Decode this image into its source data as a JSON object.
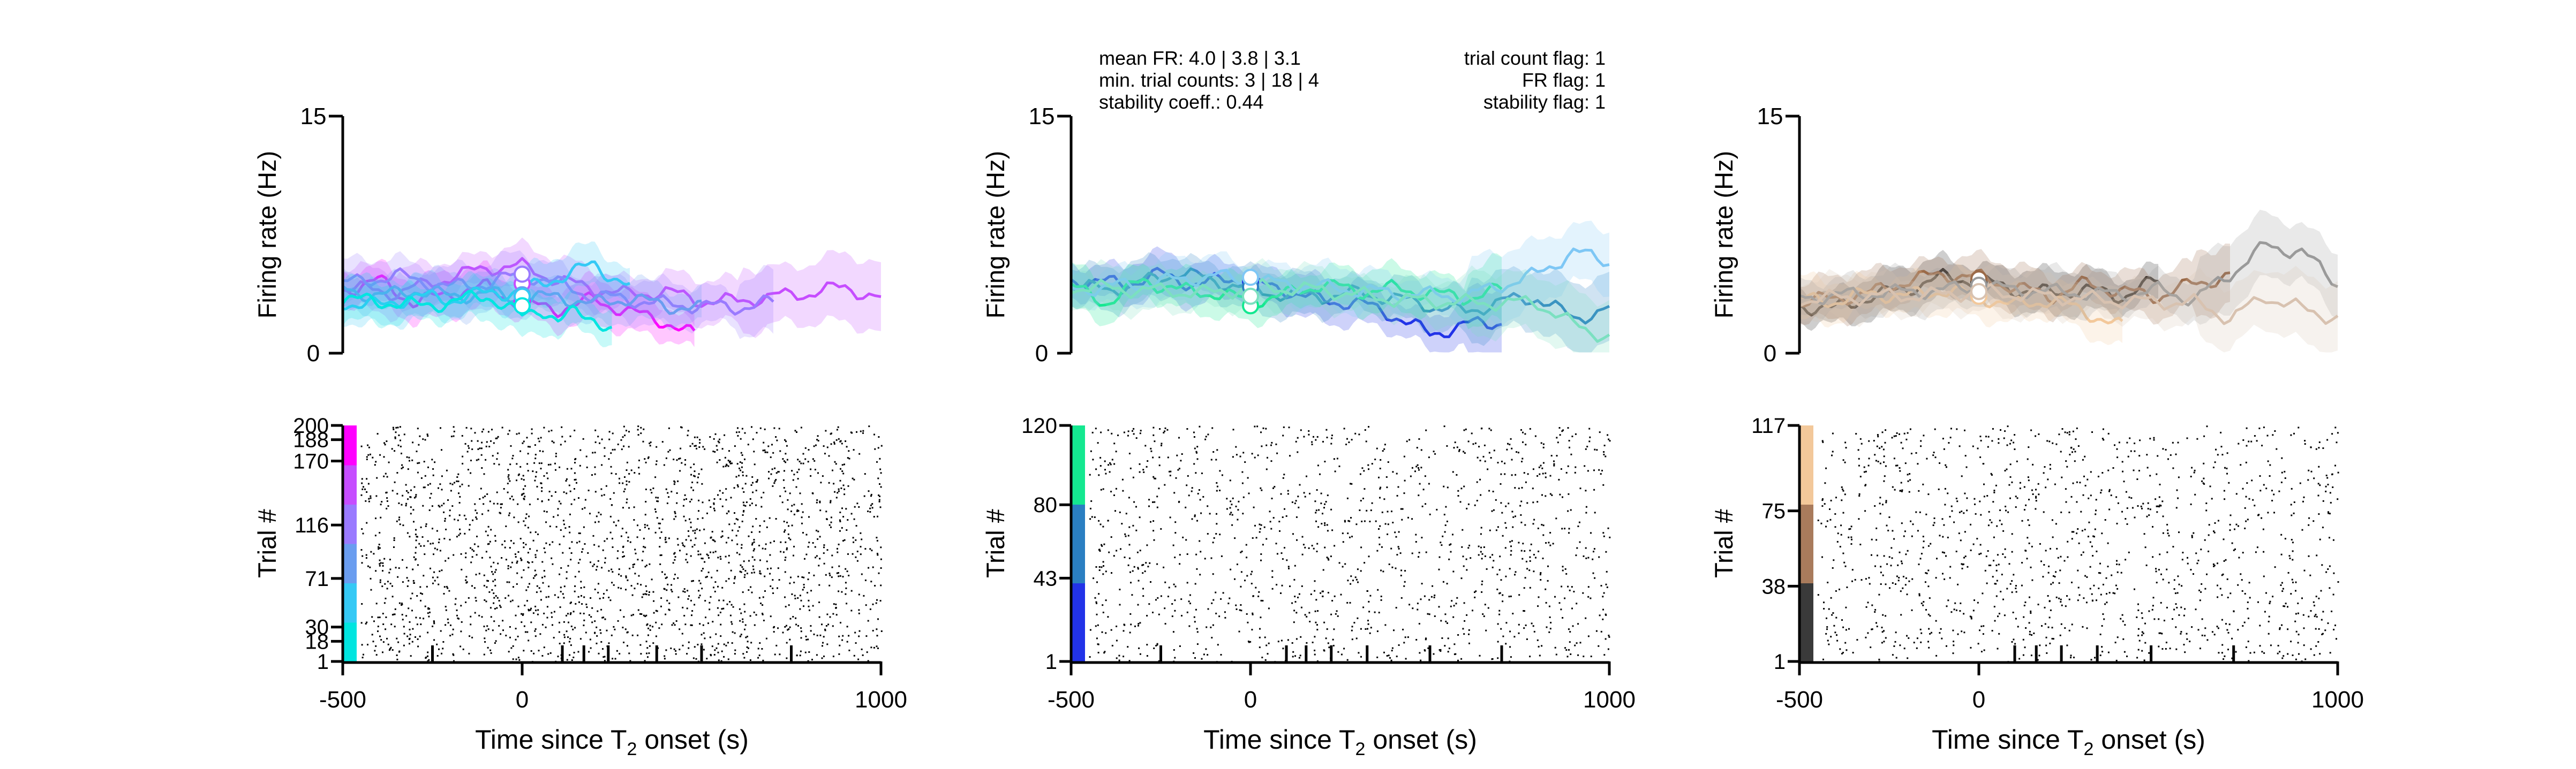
{
  "figure": {
    "stats": {
      "left": [
        "mean FR: 4.0 | 3.8 | 3.1",
        "min. trial counts: 3 | 18 | 4",
        "stability coeff.: 0.44"
      ],
      "right": [
        "trial count flag: 1",
        "FR flag: 1",
        "stability flag: 1"
      ]
    }
  },
  "chart_data": [
    {
      "type": "line",
      "title": "",
      "ylabel": "Firing rate (Hz)",
      "xlim": [
        -500,
        1000
      ],
      "ylim": [
        0,
        15
      ],
      "yticks": [
        0,
        15
      ],
      "grid": false,
      "series": [
        {
          "color": "#ff00ff",
          "x": [
            -500,
            -400,
            -300,
            -200,
            -100,
            0,
            100,
            200,
            300,
            400,
            480
          ],
          "y": [
            4.0,
            4.6,
            3.2,
            3.8,
            4.2,
            3.1,
            2.8,
            3.4,
            2.6,
            2.0,
            1.1
          ],
          "marker_y": 3.3
        },
        {
          "color": "#c64dff",
          "x": [
            -500,
            -350,
            -200,
            -100,
            0,
            100,
            200,
            300,
            400,
            500,
            600,
            700,
            800,
            900,
            1000
          ],
          "y": [
            4.2,
            3.8,
            4.8,
            5.4,
            5.5,
            4.6,
            4.1,
            3.7,
            3.9,
            3.3,
            3.3,
            3.6,
            3.8,
            4.2,
            3.4
          ],
          "marker_y": 4.4
        },
        {
          "color": "#9a7aff",
          "x": [
            -500,
            -350,
            -200,
            -100,
            0,
            100,
            200,
            300,
            400,
            500,
            600,
            700
          ],
          "y": [
            4.4,
            4.9,
            4.2,
            4.4,
            5.0,
            4.4,
            3.6,
            3.4,
            3.1,
            3.0,
            2.9,
            3.2
          ],
          "marker_y": 5.0
        },
        {
          "color": "#6a9df0",
          "x": [
            -500,
            -400,
            -300,
            -200,
            -100,
            0,
            100,
            200,
            300,
            400,
            500
          ],
          "y": [
            4.1,
            3.6,
            4.0,
            3.6,
            3.8,
            3.4,
            3.6,
            3.1,
            3.5,
            3.0,
            2.8
          ],
          "marker_y": 3.7
        },
        {
          "color": "#35c9f5",
          "x": [
            -500,
            -400,
            -300,
            -200,
            -100,
            0,
            100,
            200,
            300
          ],
          "y": [
            3.2,
            3.0,
            3.6,
            3.4,
            3.8,
            3.9,
            4.8,
            5.6,
            4.2
          ],
          "marker_y": 3.6
        },
        {
          "color": "#00e5e0",
          "x": [
            -500,
            -400,
            -300,
            -200,
            -100,
            0,
            50,
            100,
            150,
            200,
            250
          ],
          "y": [
            3.4,
            3.3,
            3.0,
            3.2,
            3.7,
            2.3,
            2.9,
            2.0,
            2.6,
            2.3,
            1.3
          ],
          "marker_y": 3.0
        }
      ],
      "raster": {
        "ylabel": "Trial #",
        "yticks": [
          1,
          18,
          30,
          71,
          116,
          170,
          188,
          200
        ],
        "n_trials": 200,
        "colorbar": [
          "#00e5e0",
          "#35c9f5",
          "#6a9df0",
          "#9a7aff",
          "#c64dff",
          "#ff00ff"
        ]
      },
      "xlabel_main": "Time since T",
      "xlabel_sub": "2",
      "xlabel_tail": " onset (s)",
      "xtick_labels": [
        "-500",
        "0",
        "1000"
      ],
      "xtick_values": [
        -500,
        0,
        1000
      ],
      "xminor_ticks": [
        -250,
        112,
        172,
        240,
        375,
        500,
        750
      ]
    },
    {
      "type": "line",
      "title": "",
      "ylabel": "Firing rate (Hz)",
      "xlim": [
        -500,
        1000
      ],
      "ylim": [
        0,
        15
      ],
      "yticks": [
        0,
        15
      ],
      "grid": false,
      "series": [
        {
          "color": "#2233e8",
          "x": [
            -500,
            -350,
            -250,
            -150,
            -50,
            0,
            100,
            200,
            300,
            400,
            500,
            600,
            700
          ],
          "y": [
            4.6,
            4.4,
            5.0,
            4.3,
            4.8,
            4.4,
            4.0,
            3.3,
            3.2,
            2.4,
            1.2,
            1.8,
            2.0
          ],
          "marker_y": 4.5
        },
        {
          "color": "#2a7fc2",
          "x": [
            -500,
            -400,
            -300,
            -200,
            -100,
            0,
            100,
            200,
            300,
            400,
            500,
            600,
            700,
            800,
            900,
            1000
          ],
          "y": [
            4.3,
            4.0,
            4.5,
            5.1,
            4.6,
            4.0,
            3.7,
            3.6,
            3.8,
            3.5,
            3.0,
            2.6,
            3.3,
            3.5,
            2.2,
            2.8
          ],
          "marker_y": 4.2
        },
        {
          "color": "#14e890",
          "x": [
            -500,
            -400,
            -300,
            -200,
            -100,
            0,
            100,
            200,
            300,
            400,
            500,
            600,
            700
          ],
          "y": [
            4.2,
            3.2,
            4.6,
            4.0,
            3.8,
            3.3,
            3.7,
            4.4,
            3.9,
            4.1,
            3.8,
            3.5,
            4.0
          ],
          "marker_y": 3.0
        },
        {
          "color": "#7ec7f5",
          "x": [
            -500,
            -300,
            -100,
            0,
            200,
            400,
            600,
            800,
            900,
            1000
          ],
          "y": [
            4.0,
            4.4,
            4.9,
            4.6,
            4.2,
            3.8,
            3.6,
            5.0,
            6.4,
            5.8
          ],
          "marker_y": 4.8
        },
        {
          "color": "#7be0c0",
          "x": [
            -500,
            -300,
            -100,
            0,
            200,
            400,
            600,
            800,
            900,
            1000
          ],
          "y": [
            4.2,
            4.0,
            3.8,
            4.2,
            4.0,
            3.4,
            3.2,
            3.2,
            1.8,
            1.0
          ],
          "marker_y": 3.6
        }
      ],
      "raster": {
        "ylabel": "Trial #",
        "yticks": [
          1,
          43,
          80,
          120
        ],
        "n_trials": 120,
        "colorbar": [
          "#2233e8",
          "#2a7fc2",
          "#14e890"
        ]
      },
      "xlabel_main": "Time since T",
      "xlabel_sub": "2",
      "xlabel_tail": " onset (s)",
      "xtick_labels": [
        "-500",
        "0",
        "1000"
      ],
      "xtick_values": [
        -500,
        0,
        1000
      ],
      "xminor_ticks": [
        -250,
        100,
        155,
        225,
        325,
        500,
        700
      ]
    },
    {
      "type": "line",
      "title": "",
      "ylabel": "Firing rate (Hz)",
      "xlim": [
        -500,
        1000
      ],
      "ylim": [
        0,
        15
      ],
      "yticks": [
        0,
        15
      ],
      "grid": false,
      "series": [
        {
          "color": "#222222",
          "x": [
            -500,
            -400,
            -300,
            -200,
            -100,
            0,
            100,
            200,
            300,
            400,
            500
          ],
          "y": [
            3.0,
            2.8,
            3.6,
            4.1,
            4.8,
            4.6,
            4.0,
            3.8,
            4.0,
            3.6,
            4.6
          ],
          "marker_y": 4.5
        },
        {
          "color": "#9b6a48",
          "x": [
            -500,
            -400,
            -300,
            -200,
            -100,
            0,
            100,
            200,
            300,
            400,
            500,
            600,
            700
          ],
          "y": [
            3.2,
            3.5,
            3.8,
            4.6,
            5.0,
            4.8,
            4.2,
            3.6,
            4.4,
            3.9,
            3.6,
            4.4,
            4.9
          ],
          "marker_y": 4.7
        },
        {
          "color": "#f3c89a",
          "x": [
            -500,
            -400,
            -300,
            -200,
            -100,
            0,
            100,
            200,
            300,
            400
          ],
          "y": [
            3.4,
            3.3,
            3.8,
            3.6,
            4.0,
            3.6,
            3.0,
            3.4,
            2.6,
            1.6
          ],
          "marker_y": 3.6
        },
        {
          "color": "#9a9a9a",
          "x": [
            -500,
            -300,
            -100,
            0,
            200,
            400,
            500,
            600,
            700,
            800,
            900,
            1000
          ],
          "y": [
            3.5,
            3.8,
            4.0,
            4.2,
            3.9,
            3.7,
            4.0,
            3.4,
            5.0,
            6.8,
            6.4,
            4.4
          ],
          "marker_y": 4.3
        },
        {
          "color": "#d8c2b0",
          "x": [
            -500,
            -300,
            -100,
            0,
            200,
            400,
            600,
            700,
            800,
            900,
            1000
          ],
          "y": [
            3.4,
            3.6,
            3.7,
            3.9,
            3.6,
            3.3,
            3.2,
            2.2,
            3.6,
            2.8,
            2.2
          ],
          "marker_y": 3.9
        }
      ],
      "raster": {
        "ylabel": "Trial #",
        "yticks": [
          1,
          38,
          75,
          117
        ],
        "n_trials": 117,
        "colorbar": [
          "#3a3a3a",
          "#a97b5c",
          "#f3c89a"
        ]
      },
      "xlabel_main": "Time since T",
      "xlabel_sub": "2",
      "xlabel_tail": " onset (s)",
      "xtick_labels": [
        "-500",
        "0",
        "1000"
      ],
      "xtick_values": [
        -500,
        0,
        1000
      ],
      "xminor_ticks": [
        100,
        160,
        230,
        330,
        480,
        710
      ]
    }
  ]
}
